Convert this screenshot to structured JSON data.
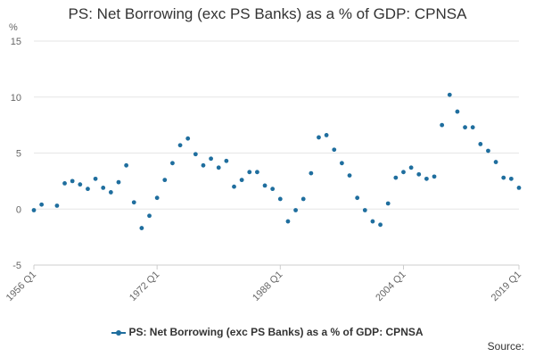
{
  "chart_data": {
    "type": "scatter",
    "title": "PS: Net Borrowing (exc PS Banks) as a % of GDP: CPNSA",
    "ylabel": "%",
    "ylim": [
      -5,
      15
    ],
    "yticks": [
      -5,
      0,
      5,
      10,
      15
    ],
    "xlim": [
      1956,
      2019
    ],
    "xticks": [
      {
        "x": 1956,
        "label": "1956 Q1"
      },
      {
        "x": 1972,
        "label": "1972 Q1"
      },
      {
        "x": 1988,
        "label": "1988 Q1"
      },
      {
        "x": 2004,
        "label": "2004 Q1"
      },
      {
        "x": 2019,
        "label": "2019 Q1"
      }
    ],
    "grid": true,
    "legend_position": "bottom",
    "series": [
      {
        "name": "PS: Net Borrowing (exc PS Banks) as a % of GDP: CPNSA",
        "color": "#1f6e9e",
        "x": [
          1956,
          1957,
          1959,
          1960,
          1961,
          1962,
          1963,
          1964,
          1965,
          1966,
          1967,
          1968,
          1969,
          1970,
          1971,
          1972,
          1973,
          1974,
          1975,
          1976,
          1977,
          1978,
          1979,
          1980,
          1981,
          1982,
          1983,
          1984,
          1985,
          1986,
          1987,
          1988,
          1989,
          1990,
          1991,
          1992,
          1993,
          1994,
          1995,
          1996,
          1997,
          1998,
          1999,
          2000,
          2001,
          2002,
          2003,
          2004,
          2005,
          2006,
          2007,
          2008,
          2009,
          2010,
          2011,
          2012,
          2013,
          2014,
          2015,
          2016,
          2017,
          2018,
          2019
        ],
        "y": [
          -0.1,
          0.4,
          0.3,
          2.3,
          2.5,
          2.2,
          1.8,
          2.7,
          1.9,
          1.5,
          2.4,
          3.9,
          0.6,
          -1.7,
          -0.6,
          1.0,
          2.6,
          4.1,
          5.7,
          6.3,
          4.9,
          3.9,
          4.5,
          3.7,
          4.3,
          2.0,
          2.6,
          3.3,
          3.3,
          2.1,
          1.8,
          0.9,
          -1.1,
          -0.1,
          0.9,
          3.2,
          6.4,
          6.6,
          5.3,
          4.1,
          3.0,
          1.0,
          -0.1,
          -1.1,
          -1.4,
          0.5,
          2.8,
          3.3,
          3.7,
          3.1,
          2.7,
          2.9,
          7.5,
          10.2,
          8.7,
          7.3,
          7.3,
          5.8,
          5.2,
          4.2,
          2.8,
          2.7,
          1.9
        ]
      }
    ]
  },
  "legend": {
    "label": "PS: Net Borrowing (exc PS Banks) as a % of GDP: CPNSA"
  },
  "source": {
    "label": "Source:"
  }
}
